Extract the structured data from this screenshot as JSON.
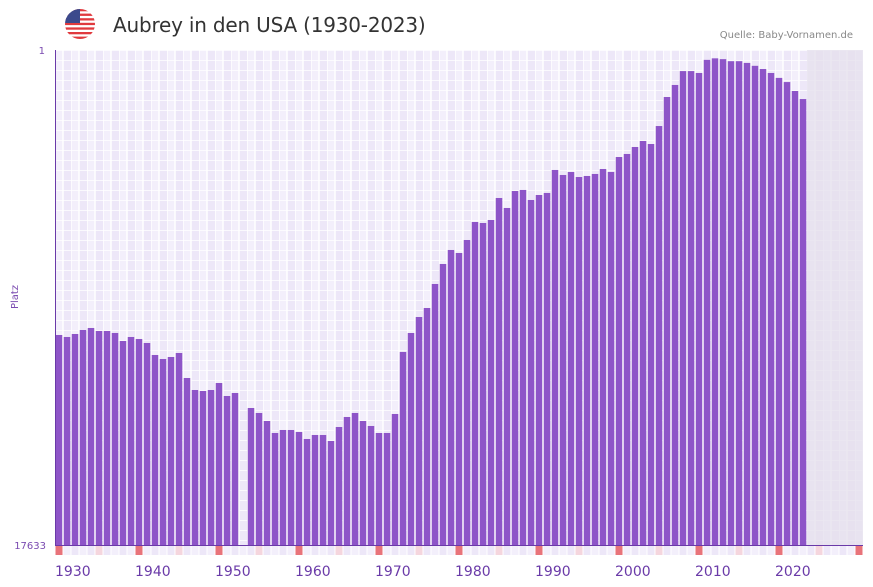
{
  "header": {
    "title": "Aubrey in den USA (1930-2023)",
    "source": "Quelle: Baby-Vornamen.de",
    "flag_icon": "us-flag-icon"
  },
  "colors": {
    "bar": "#8e55c8",
    "axis": "#6a3aa8",
    "marker_decade": "#e8737a",
    "marker_half": "#f5d6de",
    "future_bg": "#e4dfec"
  },
  "chart_data": {
    "type": "bar",
    "title": "Aubrey in den USA (1930-2023)",
    "xlabel": "",
    "ylabel": "Platz",
    "y_axis": {
      "top_label": "1",
      "bottom_label": "17633",
      "range": [
        1,
        17633
      ],
      "inverted": true
    },
    "x_axis": {
      "range": [
        1930,
        2030
      ],
      "tick_labels": [
        "1930",
        "1940",
        "1950",
        "1960",
        "1970",
        "1980",
        "1990",
        "2000",
        "2010",
        "2020"
      ]
    },
    "years": [
      1930,
      1931,
      1932,
      1933,
      1934,
      1935,
      1936,
      1937,
      1938,
      1939,
      1940,
      1941,
      1942,
      1943,
      1944,
      1945,
      1946,
      1947,
      1948,
      1949,
      1950,
      1951,
      1952,
      1953,
      1954,
      1955,
      1956,
      1957,
      1958,
      1959,
      1960,
      1961,
      1962,
      1963,
      1964,
      1965,
      1966,
      1967,
      1968,
      1969,
      1970,
      1971,
      1972,
      1973,
      1974,
      1975,
      1976,
      1977,
      1978,
      1979,
      1980,
      1981,
      1982,
      1983,
      1984,
      1985,
      1986,
      1987,
      1988,
      1989,
      1990,
      1991,
      1992,
      1993,
      1994,
      1995,
      1996,
      1997,
      1998,
      1999,
      2000,
      2001,
      2002,
      2003,
      2004,
      2005,
      2006,
      2007,
      2008,
      2009,
      2010,
      2011,
      2012,
      2013,
      2014,
      2015,
      2016,
      2017,
      2018,
      2019,
      2020,
      2021,
      2022,
      2023
    ],
    "ranks": [
      5845,
      5927,
      5804,
      5642,
      5561,
      5682,
      5682,
      5763,
      6094,
      5927,
      6010,
      6178,
      6694,
      6871,
      6782,
      6607,
      7742,
      8319,
      8368,
      8319,
      7980,
      8615,
      8466,
      null,
      9223,
      9482,
      9905,
      10556,
      10391,
      10391,
      10501,
      10889,
      10666,
      10666,
      11001,
      10228,
      9692,
      9482,
      9905,
      10173,
      10556,
      10556,
      9534,
      6563,
      5763,
      5130,
      4790,
      3940,
      3295,
      2878,
      2965,
      2598,
      2129,
      2154,
      2080,
      1576,
      1796,
      1431,
      1410,
      1619,
      1513,
      1471,
      1036,
      1124,
      1071,
      1161,
      1142,
      1106,
      1019,
      1071,
      824,
      778,
      677,
      596,
      636,
      416,
      159,
      88,
      32,
      32,
      38,
      7,
      5,
      6,
      9,
      9,
      12,
      18,
      26,
      38,
      56,
      74,
      121,
      173
    ],
    "grid": true,
    "legend": "none"
  }
}
